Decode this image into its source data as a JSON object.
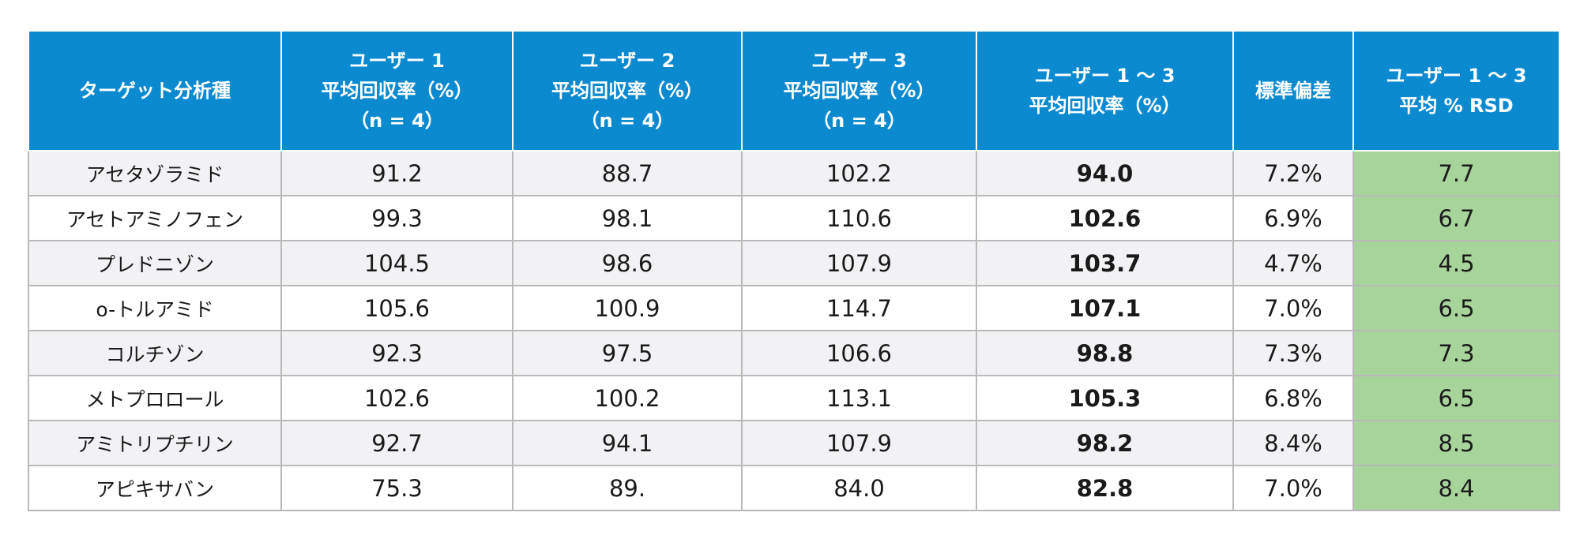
{
  "header": {
    "col0": [
      "ターゲット分析種"
    ],
    "col1": [
      "ユーザー 1",
      "平均回収率（%）",
      "（n = 4）"
    ],
    "col2": [
      "ユーザー 2",
      "平均回収率（%）",
      "（n = 4）"
    ],
    "col3": [
      "ユーザー 3",
      "平均回収率（%）",
      "（n = 4）"
    ],
    "col4": [
      "ユーザー 1 ～ 3",
      "平均回収率（%）"
    ],
    "col5": [
      "標準偏差"
    ],
    "col6": [
      "ユーザー 1 ～ 3",
      "平均 % RSD"
    ]
  },
  "rows": [
    {
      "analyte": "アセタゾラミド",
      "u1": "91.2",
      "u2": "88.7",
      "u3": "102.2",
      "mean": "94.0",
      "sd": "7.2%",
      "rsd": "7.7"
    },
    {
      "analyte": "アセトアミノフェン",
      "u1": "99.3",
      "u2": "98.1",
      "u3": "110.6",
      "mean": "102.6",
      "sd": "6.9%",
      "rsd": "6.7"
    },
    {
      "analyte": "プレドニゾン",
      "u1": "104.5",
      "u2": "98.6",
      "u3": "107.9",
      "mean": "103.7",
      "sd": "4.7%",
      "rsd": "4.5"
    },
    {
      "analyte": "o-トルアミド",
      "u1": "105.6",
      "u2": "100.9",
      "u3": "114.7",
      "mean": "107.1",
      "sd": "7.0%",
      "rsd": "6.5"
    },
    {
      "analyte": "コルチゾン",
      "u1": "92.3",
      "u2": "97.5",
      "u3": "106.6",
      "mean": "98.8",
      "sd": "7.3%",
      "rsd": "7.3"
    },
    {
      "analyte": "メトプロロール",
      "u1": "102.6",
      "u2": "100.2",
      "u3": "113.1",
      "mean": "105.3",
      "sd": "6.8%",
      "rsd": "6.5"
    },
    {
      "analyte": "アミトリプチリン",
      "u1": "92.7",
      "u2": "94.1",
      "u3": "107.9",
      "mean": "98.2",
      "sd": "8.4%",
      "rsd": "8.5"
    },
    {
      "analyte": "アピキサバン",
      "u1": "75.3",
      "u2": "89.",
      "u3": "84.0",
      "mean": "82.8",
      "sd": "7.0%",
      "rsd": "8.4"
    }
  ],
  "colors": {
    "header_bg": "#0b8ad0",
    "rsd_bg": "#a6d49a",
    "stripe_bg": "#f2f2f4"
  }
}
